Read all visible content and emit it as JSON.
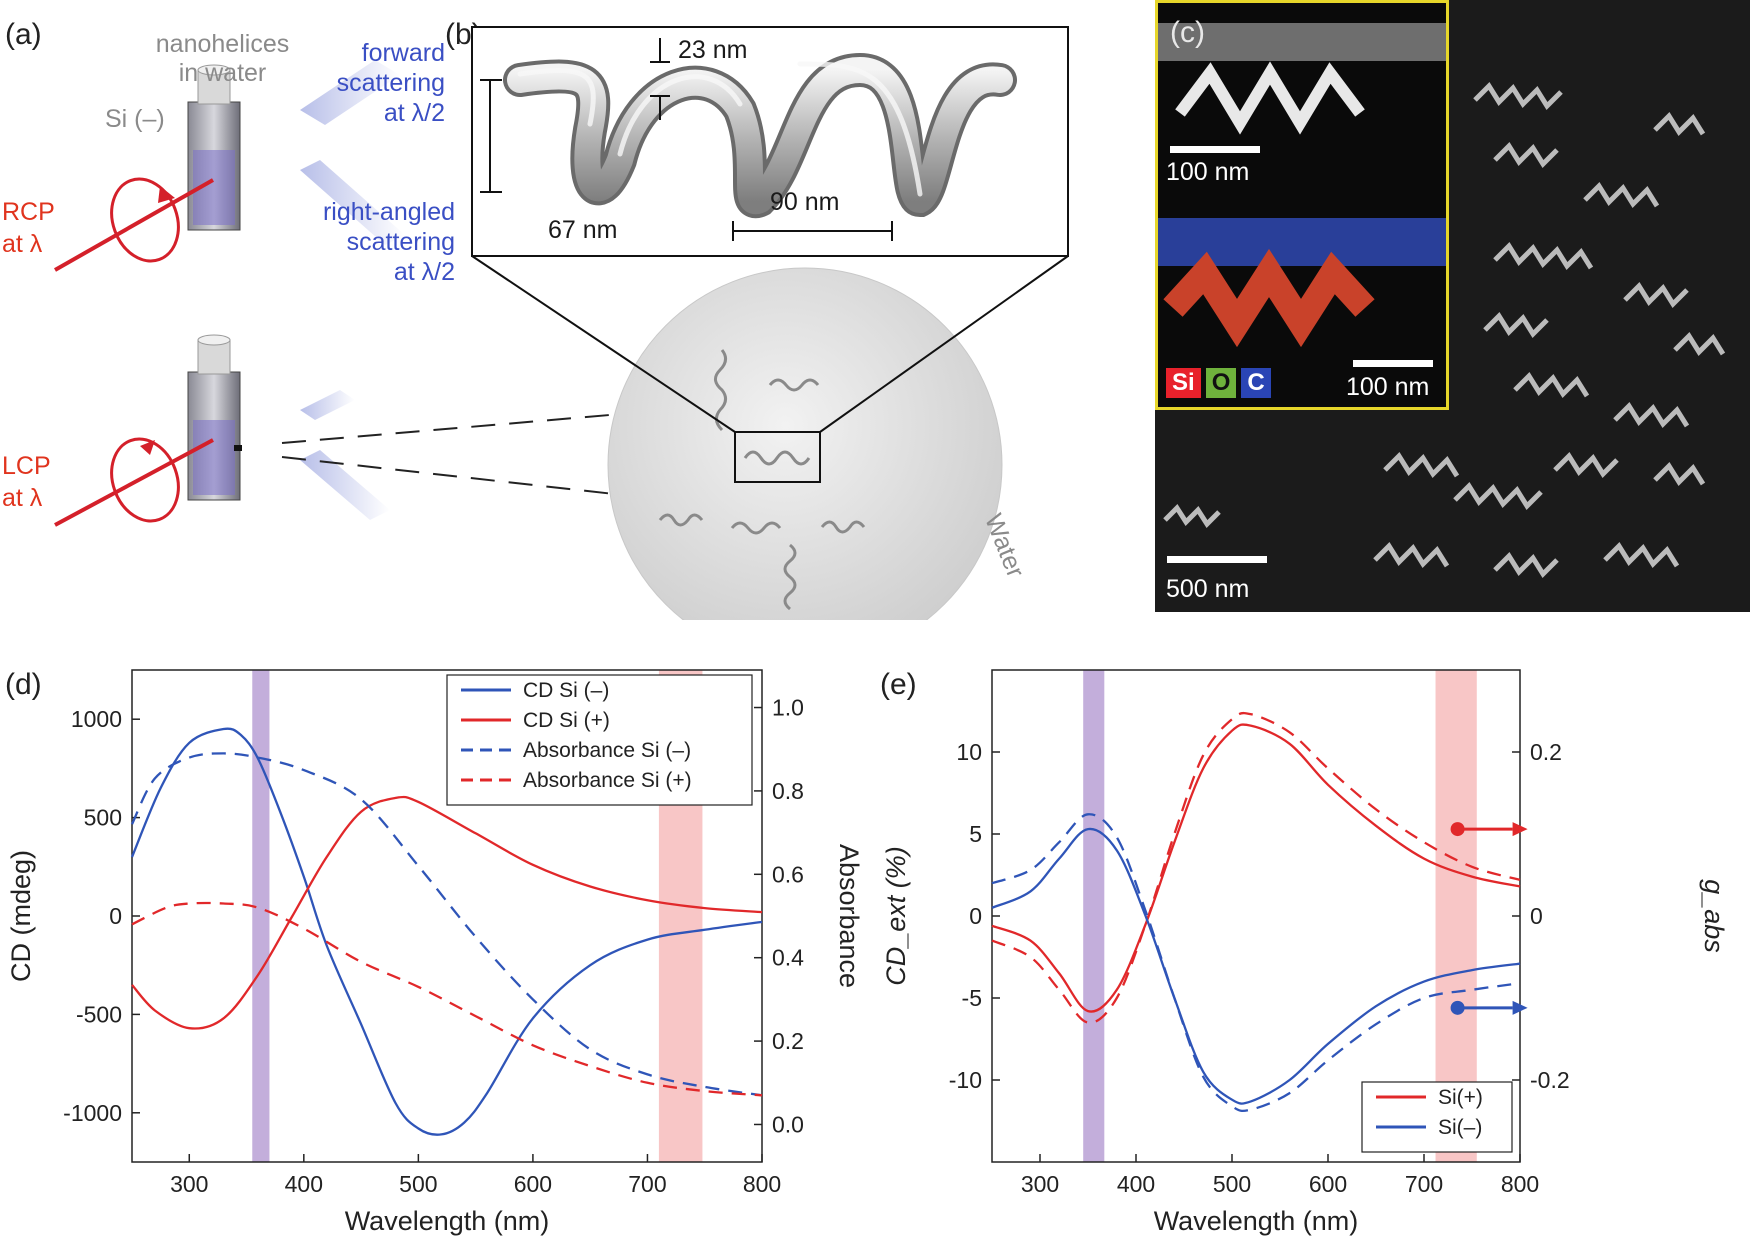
{
  "panels": {
    "a": {
      "label": "(a)",
      "sample_label_line1": "nanohelices",
      "sample_label_line2": "in water",
      "cuvette_label": "Si (–)",
      "forward_line1": "forward",
      "forward_line2": "scattering",
      "forward_line3": "at λ/2",
      "right_line1": "right-angled",
      "right_line2": "scattering",
      "right_line3": "at λ/2",
      "rcp_line1": "RCP",
      "rcp_line2": "at λ",
      "lcp_line1": "LCP",
      "lcp_line2": "at λ"
    },
    "b": {
      "label": "(b)",
      "dim_wire": "23 nm",
      "dim_diameter": "67 nm",
      "dim_pitch": "90 nm",
      "medium": "Water"
    },
    "c": {
      "label": "(c)",
      "scale_top": "100 nm",
      "scale_bottom": "100 nm",
      "scale_sem": "500 nm",
      "legend": [
        "Si",
        "O",
        "C"
      ],
      "legend_colors": [
        "#e8212b",
        "#6fb23c",
        "#2a45b5"
      ]
    },
    "d": {
      "label": "(d)"
    },
    "e": {
      "label": "(e)"
    }
  },
  "colors": {
    "blue": "#2f55b8",
    "red": "#e1282a",
    "violet": "#b49ad2",
    "pink": "#f6b8b8"
  },
  "chart_data": [
    {
      "type": "line",
      "xlabel": "Wavelength (nm)",
      "ylabel": "CD (mdeg)",
      "y2label": "Absorbance",
      "xlim": [
        250,
        800
      ],
      "ylim": [
        -1250,
        1250
      ],
      "y2lim": [
        -0.09,
        1.09
      ],
      "xticks": [
        300,
        400,
        500,
        600,
        700,
        800
      ],
      "yticks": [
        -1000,
        -500,
        0,
        500,
        1000
      ],
      "y2ticks": [
        0.0,
        0.2,
        0.4,
        0.6,
        0.8,
        1.0
      ],
      "xtick_labels": [
        "300",
        "400",
        "500",
        "600",
        "700",
        "800"
      ],
      "ytick_labels": [
        "-1000",
        "-500",
        "0",
        "500",
        "1000"
      ],
      "y2tick_labels": [
        "0.0",
        "0.2",
        "0.4",
        "0.6",
        "0.8",
        "1.0"
      ],
      "bands": [
        {
          "from": 355,
          "to": 370,
          "color": "#b49ad2"
        },
        {
          "from": 710,
          "to": 748,
          "color": "#f6b8b8"
        }
      ],
      "legend_position": "top-right",
      "series": [
        {
          "name": "CD Si (–)",
          "axis": "left",
          "dash": false,
          "color": "#2f55b8",
          "x": [
            250,
            275,
            300,
            330,
            345,
            360,
            380,
            400,
            420,
            450,
            480,
            500,
            520,
            540,
            560,
            600,
            650,
            700,
            750,
            800
          ],
          "y": [
            300,
            650,
            880,
            950,
            920,
            800,
            520,
            200,
            -150,
            -550,
            -950,
            -1080,
            -1110,
            -1050,
            -900,
            -520,
            -250,
            -120,
            -70,
            -30
          ]
        },
        {
          "name": "CD Si (+)",
          "axis": "left",
          "dash": false,
          "color": "#e1282a",
          "x": [
            250,
            270,
            300,
            330,
            360,
            390,
            420,
            450,
            480,
            500,
            550,
            600,
            650,
            700,
            750,
            800
          ],
          "y": [
            -350,
            -480,
            -570,
            -520,
            -300,
            0,
            300,
            530,
            600,
            580,
            420,
            260,
            150,
            80,
            40,
            20
          ]
        },
        {
          "name": "Absorbance Si (–)",
          "axis": "right",
          "dash": true,
          "color": "#2f55b8",
          "x": [
            250,
            270,
            300,
            330,
            360,
            400,
            450,
            500,
            550,
            600,
            650,
            700,
            750,
            800
          ],
          "y": [
            0.72,
            0.83,
            0.88,
            0.89,
            0.88,
            0.85,
            0.78,
            0.62,
            0.45,
            0.3,
            0.18,
            0.12,
            0.09,
            0.07
          ]
        },
        {
          "name": "Absorbance Si (+)",
          "axis": "right",
          "dash": true,
          "color": "#e1282a",
          "x": [
            250,
            280,
            300,
            330,
            360,
            400,
            450,
            500,
            550,
            600,
            650,
            700,
            750,
            800
          ],
          "y": [
            0.48,
            0.52,
            0.53,
            0.53,
            0.52,
            0.47,
            0.39,
            0.33,
            0.26,
            0.19,
            0.14,
            0.1,
            0.08,
            0.07
          ]
        }
      ]
    },
    {
      "type": "line",
      "xlabel": "Wavelength (nm)",
      "ylabel": "CD_ext (%)",
      "y2label": "g_abs",
      "xlim": [
        250,
        800
      ],
      "ylim": [
        -15,
        15
      ],
      "y2lim": [
        -0.3,
        0.3
      ],
      "xticks": [
        300,
        400,
        500,
        600,
        700,
        800
      ],
      "yticks": [
        -10,
        -5,
        0,
        5,
        10
      ],
      "y2ticks": [
        -0.2,
        0,
        0.2
      ],
      "xtick_labels": [
        "300",
        "400",
        "500",
        "600",
        "700",
        "800"
      ],
      "ytick_labels": [
        "-10",
        "-5",
        "0",
        "5",
        "10"
      ],
      "y2tick_labels": [
        "-0.2",
        "0",
        "0.2"
      ],
      "bands": [
        {
          "from": 345,
          "to": 367,
          "color": "#b49ad2"
        },
        {
          "from": 712,
          "to": 755,
          "color": "#f6b8b8"
        }
      ],
      "legend_position": "bottom-right",
      "series": [
        {
          "name": "Si(+)",
          "axis": "left",
          "dash": false,
          "color": "#e1282a",
          "x": [
            250,
            290,
            320,
            350,
            380,
            410,
            440,
            470,
            500,
            520,
            560,
            600,
            650,
            700,
            750,
            800
          ],
          "y": [
            -0.6,
            -1.5,
            -3.5,
            -5.8,
            -4.5,
            -0.5,
            4.5,
            9.0,
            11.3,
            11.6,
            10.5,
            8.0,
            5.5,
            3.5,
            2.4,
            1.8
          ]
        },
        {
          "name": "",
          "axis": "left",
          "dash": true,
          "color": "#e1282a",
          "x": [
            250,
            290,
            320,
            350,
            380,
            410,
            440,
            470,
            500,
            520,
            560,
            600,
            650,
            700,
            750,
            800
          ],
          "y": [
            -1.5,
            -2.5,
            -4.5,
            -6.5,
            -5.0,
            -0.5,
            5.0,
            9.8,
            12.0,
            12.3,
            11.2,
            9.0,
            6.5,
            4.5,
            3.0,
            2.2
          ]
        },
        {
          "name": "Si(–)",
          "axis": "left",
          "dash": false,
          "color": "#2f55b8",
          "x": [
            250,
            290,
            320,
            350,
            380,
            410,
            440,
            470,
            500,
            520,
            560,
            600,
            650,
            700,
            750,
            800
          ],
          "y": [
            0.5,
            1.5,
            3.5,
            5.3,
            4.0,
            0.0,
            -5.0,
            -9.5,
            -11.2,
            -11.3,
            -10.0,
            -7.8,
            -5.5,
            -4.0,
            -3.3,
            -2.9
          ]
        },
        {
          "name": "",
          "axis": "left",
          "dash": true,
          "color": "#2f55b8",
          "x": [
            250,
            290,
            320,
            350,
            380,
            410,
            440,
            470,
            500,
            520,
            560,
            600,
            650,
            700,
            750,
            800
          ],
          "y": [
            2.0,
            2.8,
            4.5,
            6.2,
            4.8,
            0.3,
            -5.0,
            -9.8,
            -11.6,
            -11.8,
            -10.8,
            -8.8,
            -6.6,
            -5.0,
            -4.5,
            -4.1
          ]
        }
      ]
    }
  ]
}
